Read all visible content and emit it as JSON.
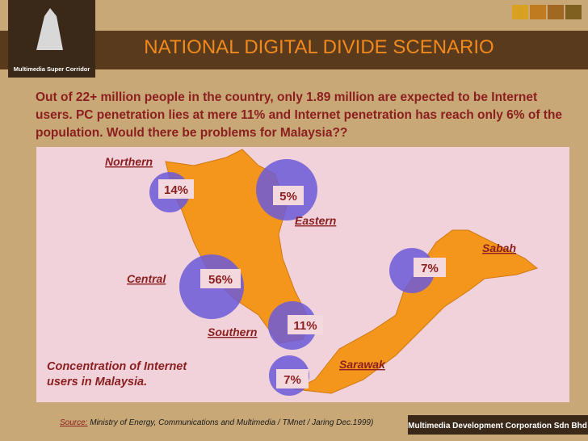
{
  "header": {
    "logo_text": "Multimedia Super Corridor",
    "title": "NATIONAL DIGITAL DIVIDE SCENARIO"
  },
  "body": {
    "text": "Out of 22+ million people in the country, only 1.89 million are expected to be Internet users. PC penetration lies at mere 11% and Internet penetration has reach only 6% of the population. Would there be problems for Malaysia??"
  },
  "map": {
    "regions": [
      {
        "name": "Northern",
        "value": "14%"
      },
      {
        "name": "Eastern",
        "value": "5%"
      },
      {
        "name": "Central",
        "value": "56%"
      },
      {
        "name": "Southern",
        "value": "11%"
      },
      {
        "name": "Sabah",
        "value": "7%"
      },
      {
        "name": "Sarawak",
        "value": "7%"
      }
    ],
    "caption": "Concentration of Internet users in Malaysia."
  },
  "source": {
    "label": "Source:",
    "text": "Ministry of Energy, Communications and Multimedia / TMnet / Jaring Dec.1999)"
  },
  "footer": {
    "text": "Multimedia Development Corporation Sdn Bhd"
  }
}
